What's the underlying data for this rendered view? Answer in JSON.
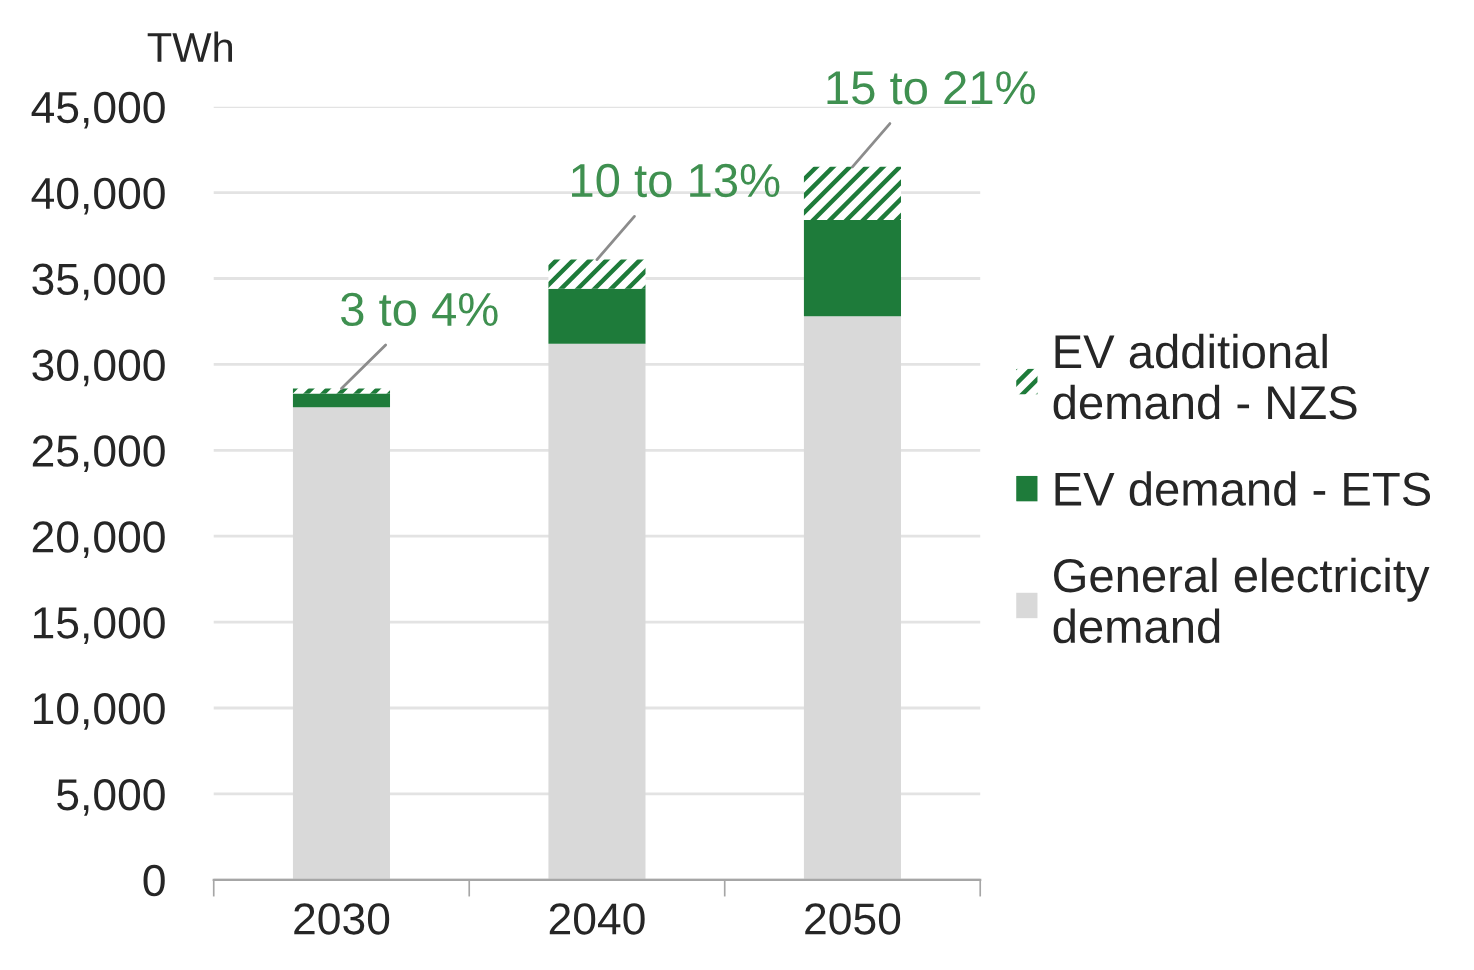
{
  "chart_data": {
    "type": "bar",
    "stacked": true,
    "ylabel": "TWh",
    "categories": [
      "2030",
      "2040",
      "2050"
    ],
    "series": [
      {
        "name": "General electricity demand",
        "color": "#d9d9d9",
        "values": [
          27500,
          31200,
          32800
        ]
      },
      {
        "name": "EV demand - ETS",
        "color": "#1e7b3a",
        "values": [
          800,
          3200,
          5600
        ]
      },
      {
        "name": "EV additional demand - NZS",
        "color": "#1e7b3a",
        "values": [
          300,
          1700,
          3100
        ]
      }
    ],
    "ylim": [
      0,
      45000
    ],
    "yticks": [
      0,
      {
        "value": 5000,
        "label": "5,000"
      },
      {
        "value": 10000,
        "label": "10,000"
      },
      {
        "value": 15000,
        "label": "15,000"
      },
      {
        "value": 20000,
        "label": "20,000"
      },
      {
        "value": 25000,
        "label": "25,000"
      },
      {
        "value": 30000,
        "label": "30,000"
      },
      {
        "value": 35000,
        "label": "35,000"
      },
      {
        "value": 40000,
        "label": "40,000"
      },
      {
        "value": 45000,
        "label": "45,000"
      }
    ],
    "grid": "y",
    "legend": "right",
    "annotations": [
      {
        "text": "3 to 4%",
        "x": "2030",
        "y": 28600
      },
      {
        "text": "10 to 13%",
        "x": "2040",
        "y": 36100
      },
      {
        "text": "15 to 21%",
        "x": "2050",
        "y": 41500
      }
    ]
  }
}
